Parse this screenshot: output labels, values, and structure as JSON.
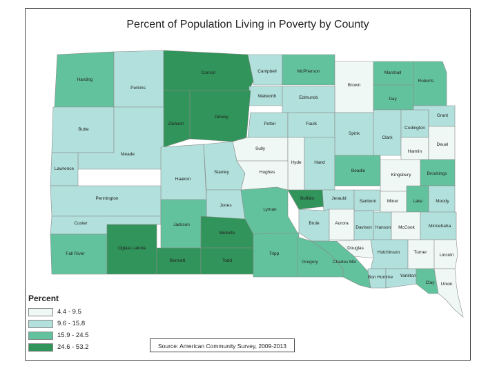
{
  "title": "Percent of Population Living in Poverty by County",
  "legend": {
    "title": "Percent",
    "classes": [
      {
        "label": "4.4 - 9.5",
        "color": "#eff8f5"
      },
      {
        "label": "9.6 - 15.8",
        "color": "#b2e0dc"
      },
      {
        "label": "15.9 - 24.5",
        "color": "#63c29e"
      },
      {
        "label": "24.6 - 53.2",
        "color": "#31945a"
      }
    ]
  },
  "source": "Source: American Community Survey, 2009-2013",
  "counties": [
    {
      "name": "Harding",
      "class": 2
    },
    {
      "name": "Perkins",
      "class": 1
    },
    {
      "name": "Corson",
      "class": 3
    },
    {
      "name": "Campbell",
      "class": 1
    },
    {
      "name": "McPherson",
      "class": 2
    },
    {
      "name": "Brown",
      "class": 0
    },
    {
      "name": "Marshall",
      "class": 2
    },
    {
      "name": "Roberts",
      "class": 2
    },
    {
      "name": "Walworth",
      "class": 1
    },
    {
      "name": "Edmunds",
      "class": 1
    },
    {
      "name": "Day",
      "class": 2
    },
    {
      "name": "Butte",
      "class": 1
    },
    {
      "name": "Ziebach",
      "class": 3
    },
    {
      "name": "Dewey",
      "class": 3
    },
    {
      "name": "Potter",
      "class": 1
    },
    {
      "name": "Faulk",
      "class": 1
    },
    {
      "name": "Spink",
      "class": 1
    },
    {
      "name": "Clark",
      "class": 1
    },
    {
      "name": "Codington",
      "class": 1
    },
    {
      "name": "Grant",
      "class": 1
    },
    {
      "name": "Meade",
      "class": 1
    },
    {
      "name": "Sully",
      "class": 0
    },
    {
      "name": "Hyde",
      "class": 0
    },
    {
      "name": "Hand",
      "class": 1
    },
    {
      "name": "Hamlin",
      "class": 0
    },
    {
      "name": "Deuel",
      "class": 0
    },
    {
      "name": "Lawrence",
      "class": 1
    },
    {
      "name": "Haakon",
      "class": 1
    },
    {
      "name": "Stanley",
      "class": 1
    },
    {
      "name": "Hughes",
      "class": 0
    },
    {
      "name": "Beadle",
      "class": 2
    },
    {
      "name": "Kingsbury",
      "class": 0
    },
    {
      "name": "Brookings",
      "class": 2
    },
    {
      "name": "Pennington",
      "class": 1
    },
    {
      "name": "Jones",
      "class": 1
    },
    {
      "name": "Lyman",
      "class": 2
    },
    {
      "name": "Buffalo",
      "class": 3
    },
    {
      "name": "Jerauld",
      "class": 1
    },
    {
      "name": "Sanborn",
      "class": 1
    },
    {
      "name": "Miner",
      "class": 0
    },
    {
      "name": "Lake",
      "class": 2
    },
    {
      "name": "Moody",
      "class": 1
    },
    {
      "name": "Custer",
      "class": 1
    },
    {
      "name": "Jackson",
      "class": 2
    },
    {
      "name": "Mellette",
      "class": 3
    },
    {
      "name": "Brule",
      "class": 1
    },
    {
      "name": "Aurora",
      "class": 0
    },
    {
      "name": "Davison",
      "class": 1
    },
    {
      "name": "Hanson",
      "class": 1
    },
    {
      "name": "McCook",
      "class": 0
    },
    {
      "name": "Minnehaha",
      "class": 1
    },
    {
      "name": "Fall River",
      "class": 2
    },
    {
      "name": "Oglala Lakota",
      "class": 3
    },
    {
      "name": "Bennett",
      "class": 3
    },
    {
      "name": "Todd",
      "class": 3
    },
    {
      "name": "Tripp",
      "class": 2
    },
    {
      "name": "Gregory",
      "class": 2
    },
    {
      "name": "Charles Mix",
      "class": 2
    },
    {
      "name": "Douglas",
      "class": 0
    },
    {
      "name": "Hutchinson",
      "class": 1
    },
    {
      "name": "Turner",
      "class": 0
    },
    {
      "name": "Lincoln",
      "class": 0
    },
    {
      "name": "Bon Homme",
      "class": 1
    },
    {
      "name": "Yankton",
      "class": 1
    },
    {
      "name": "Clay",
      "class": 2
    },
    {
      "name": "Union",
      "class": 0
    }
  ]
}
